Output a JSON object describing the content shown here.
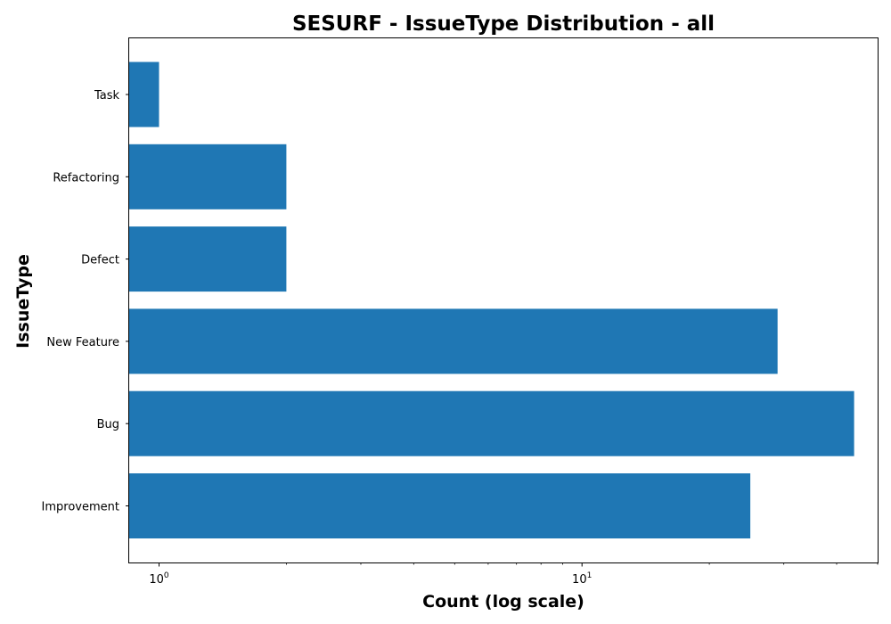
{
  "chart_data": {
    "type": "bar",
    "orientation": "horizontal",
    "title": "SESURF - IssueType Distribution - all",
    "xlabel": "Count (log scale)",
    "ylabel": "IssueType",
    "x_scale": "log",
    "xlim": [
      0.85,
      50
    ],
    "x_ticks": [
      {
        "value": 1,
        "base": "10",
        "exponent": "0"
      },
      {
        "value": 10,
        "base": "10",
        "exponent": "1"
      }
    ],
    "categories": [
      "Improvement",
      "Bug",
      "New Feature",
      "Defect",
      "Refactoring",
      "Task"
    ],
    "values": [
      25,
      44,
      29,
      2,
      2,
      1
    ],
    "bar_color": "#1f77b4",
    "grid": false,
    "legend": "none"
  }
}
